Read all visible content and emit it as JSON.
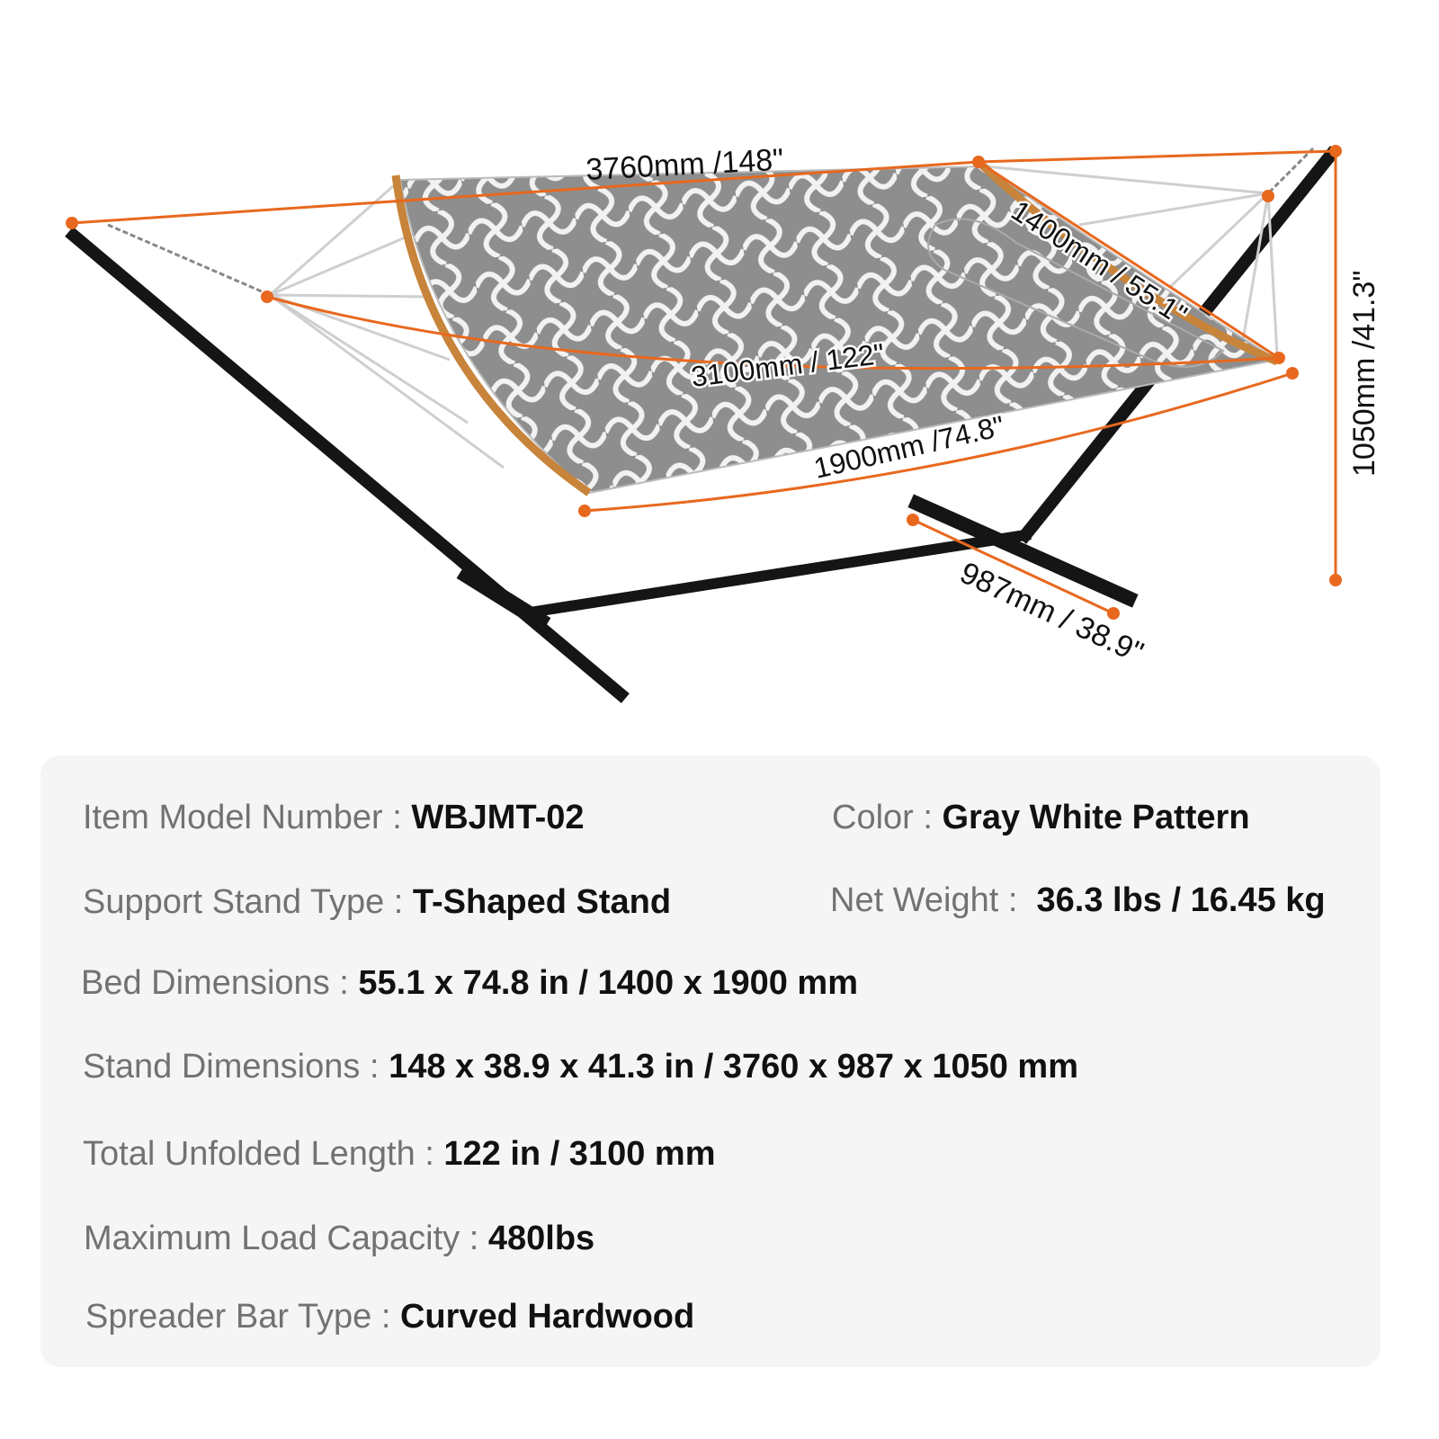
{
  "diagram": {
    "dimensions": {
      "length": "3760mm /148\"",
      "bed_width": "1400mm / 55.1\"",
      "unfolded_length": "3100mm / 122\"",
      "bed_length": "1900mm /74.8\"",
      "height": "1050mm /41.3\"",
      "base_width": "987mm / 38.9\""
    },
    "colors": {
      "dimension_line": "#e8681e",
      "frame": "#151515",
      "fabric": "#8f8f8f",
      "spreader_bar": "#c8843a"
    }
  },
  "specs": {
    "model": {
      "label": "Item Model Number :",
      "value": "WBJMT-02"
    },
    "color": {
      "label": "Color :",
      "value": "Gray White Pattern"
    },
    "stand_type": {
      "label": "Support Stand Type :",
      "value": "T-Shaped Stand"
    },
    "net_weight": {
      "label": "Net Weight :",
      "value": "36.3 lbs / 16.45 kg"
    },
    "bed_dimensions": {
      "label": "Bed Dimensions :",
      "value": "55.1 x 74.8 in / 1400 x 1900 mm"
    },
    "stand_dimensions": {
      "label": "Stand Dimensions :",
      "value": "148 x 38.9 x 41.3 in / 3760 x 987 x 1050 mm"
    },
    "unfolded_length": {
      "label": "Total Unfolded Length :",
      "value": "122 in / 3100 mm"
    },
    "max_load": {
      "label": "Maximum Load Capacity :",
      "value": "480lbs"
    },
    "spreader_bar": {
      "label": "Spreader Bar Type :",
      "value": "Curved Hardwood"
    }
  }
}
